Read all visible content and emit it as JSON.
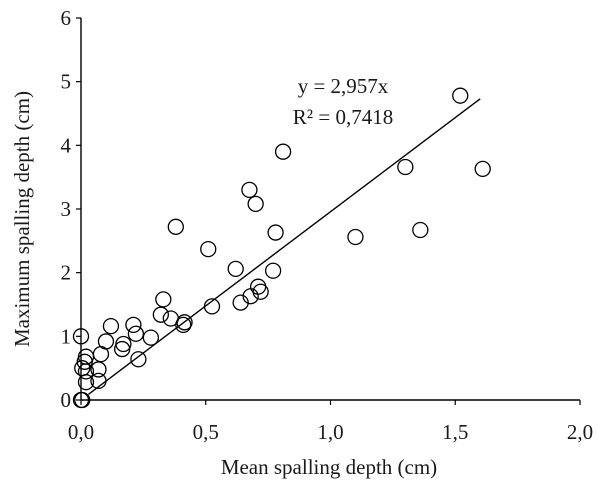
{
  "chart_data": {
    "type": "scatter",
    "xlabel": "Mean spalling depth (cm)",
    "ylabel": "Maximum spalling depth (cm)",
    "xlim": [
      0,
      2
    ],
    "ylim": [
      0,
      6
    ],
    "x_ticks": [
      "0,0",
      "0,5",
      "1,0",
      "1,5",
      "2,0"
    ],
    "x_tick_values": [
      0,
      0.5,
      1.0,
      1.5,
      2.0
    ],
    "y_ticks": [
      "0",
      "1",
      "2",
      "3",
      "4",
      "5",
      "6"
    ],
    "y_tick_values": [
      0,
      1,
      2,
      3,
      4,
      5,
      6
    ],
    "grid": false,
    "legend": "none",
    "trendline": {
      "slope": 2.957,
      "intercept": 0,
      "x_range": [
        0.03,
        1.6
      ],
      "equation_text": "y = 2,957x",
      "r2_text": "R² = 0,7418"
    },
    "points": [
      {
        "x": 0.0,
        "y": 0.0
      },
      {
        "x": 0.005,
        "y": 0.0
      },
      {
        "x": 0.0,
        "y": 1.0
      },
      {
        "x": 0.005,
        "y": 0.5
      },
      {
        "x": 0.015,
        "y": 0.6
      },
      {
        "x": 0.02,
        "y": 0.68
      },
      {
        "x": 0.02,
        "y": 0.45
      },
      {
        "x": 0.02,
        "y": 0.28
      },
      {
        "x": 0.07,
        "y": 0.3
      },
      {
        "x": 0.07,
        "y": 0.48
      },
      {
        "x": 0.08,
        "y": 0.72
      },
      {
        "x": 0.1,
        "y": 0.92
      },
      {
        "x": 0.12,
        "y": 1.16
      },
      {
        "x": 0.165,
        "y": 0.8
      },
      {
        "x": 0.17,
        "y": 0.88
      },
      {
        "x": 0.21,
        "y": 1.18
      },
      {
        "x": 0.22,
        "y": 1.04
      },
      {
        "x": 0.23,
        "y": 0.64
      },
      {
        "x": 0.28,
        "y": 0.98
      },
      {
        "x": 0.32,
        "y": 1.34
      },
      {
        "x": 0.33,
        "y": 1.58
      },
      {
        "x": 0.36,
        "y": 1.28
      },
      {
        "x": 0.38,
        "y": 2.72
      },
      {
        "x": 0.41,
        "y": 1.18
      },
      {
        "x": 0.415,
        "y": 1.22
      },
      {
        "x": 0.51,
        "y": 2.37
      },
      {
        "x": 0.525,
        "y": 1.47
      },
      {
        "x": 0.62,
        "y": 2.06
      },
      {
        "x": 0.64,
        "y": 1.53
      },
      {
        "x": 0.675,
        "y": 3.3
      },
      {
        "x": 0.68,
        "y": 1.63
      },
      {
        "x": 0.7,
        "y": 3.08
      },
      {
        "x": 0.71,
        "y": 1.78
      },
      {
        "x": 0.72,
        "y": 1.7
      },
      {
        "x": 0.77,
        "y": 2.03
      },
      {
        "x": 0.78,
        "y": 2.63
      },
      {
        "x": 0.81,
        "y": 3.9
      },
      {
        "x": 1.1,
        "y": 2.56
      },
      {
        "x": 1.3,
        "y": 3.66
      },
      {
        "x": 1.36,
        "y": 2.67
      },
      {
        "x": 1.52,
        "y": 4.78
      },
      {
        "x": 1.61,
        "y": 3.63
      }
    ]
  }
}
